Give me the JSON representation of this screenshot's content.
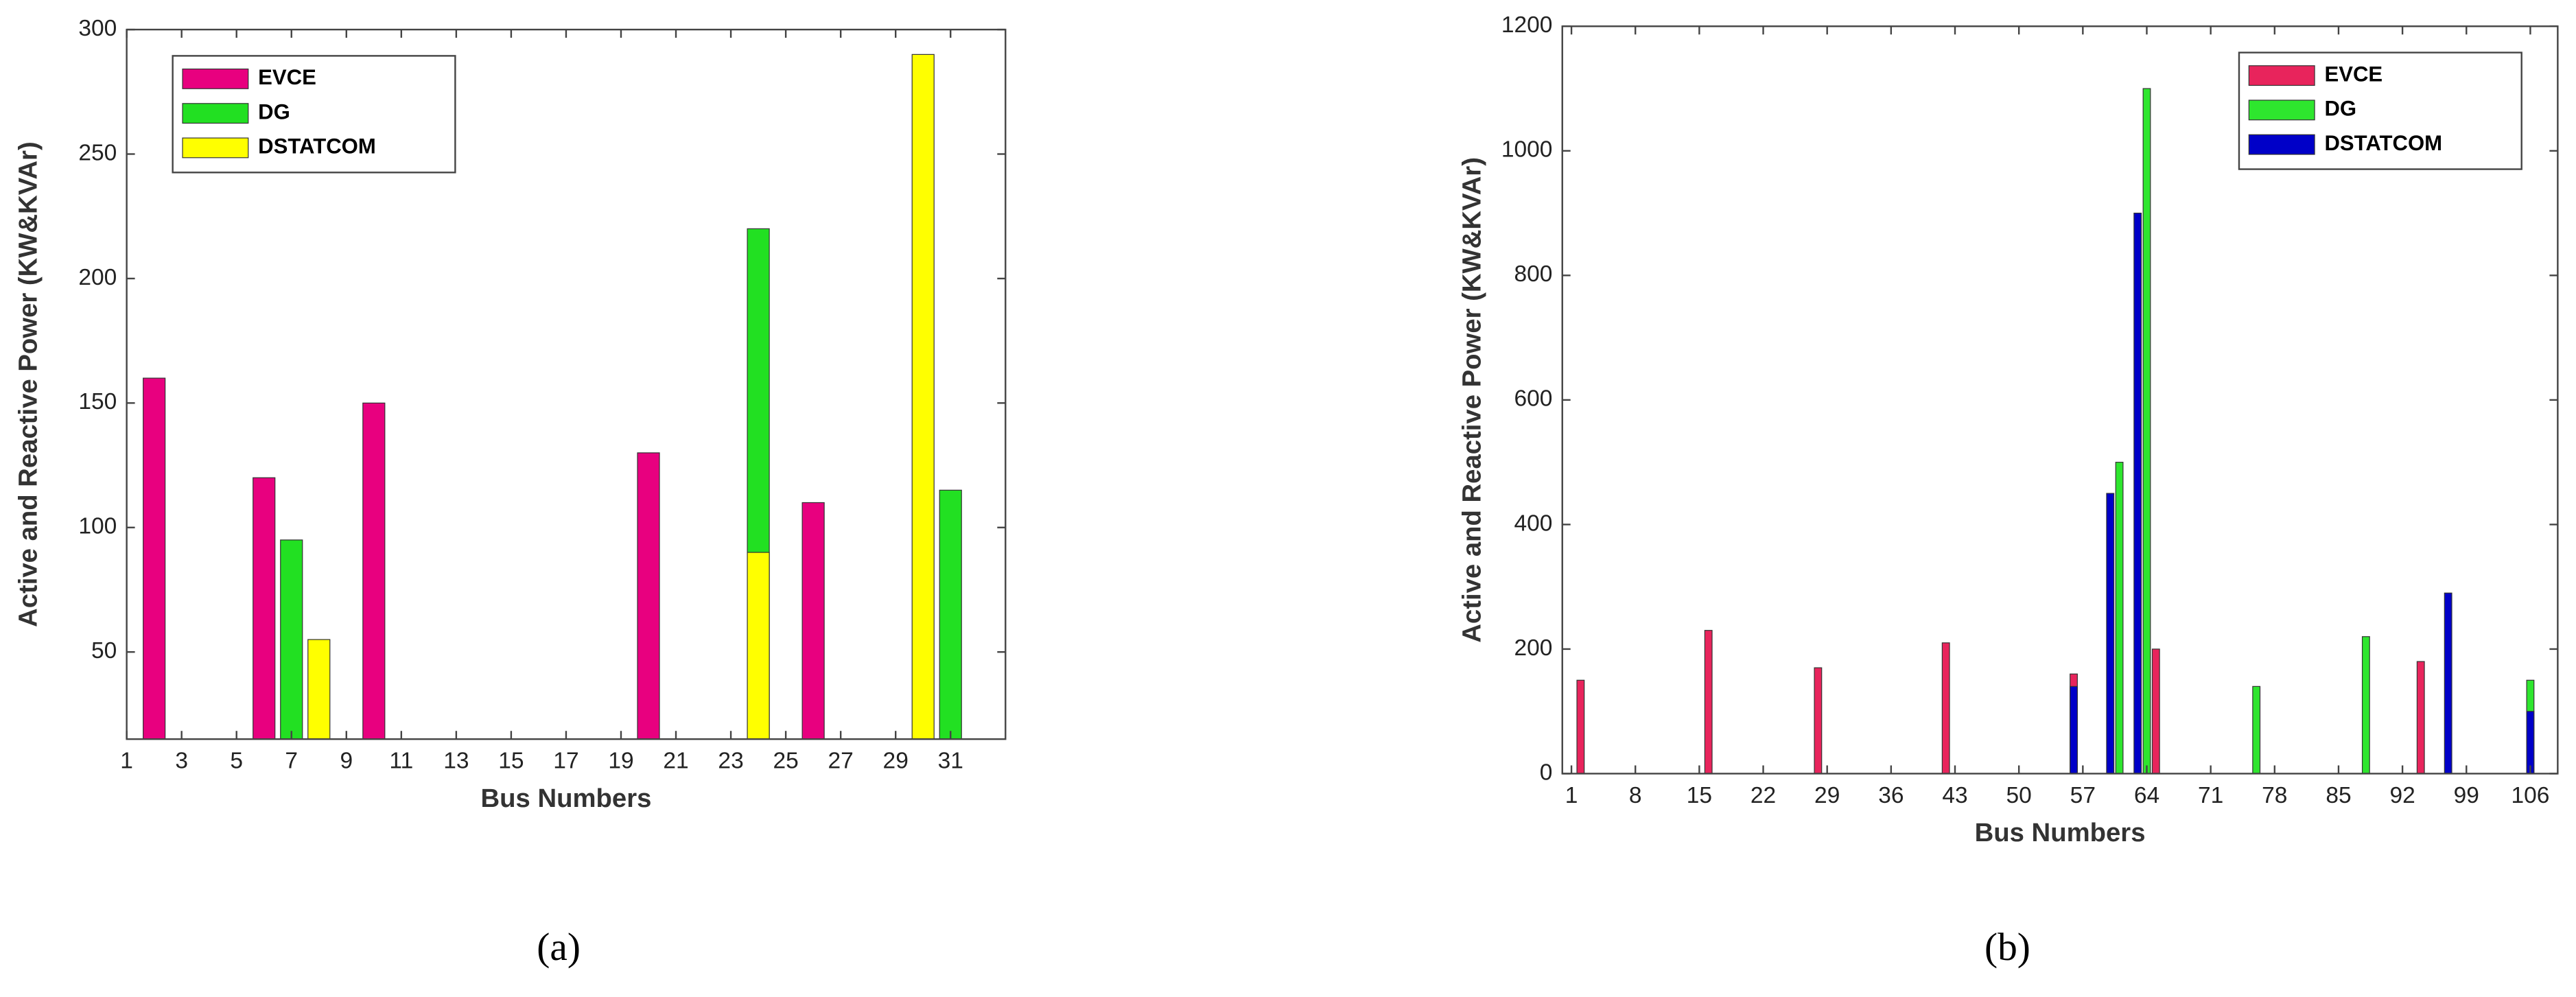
{
  "chart_data": [
    {
      "type": "bar",
      "caption": "(a)",
      "xlabel": "Bus Numbers",
      "ylabel": "Active and Reactive Power (KW&KVAr)",
      "xlim": [
        1,
        33
      ],
      "xticks": [
        1,
        3,
        5,
        7,
        9,
        11,
        13,
        15,
        17,
        19,
        21,
        23,
        25,
        27,
        29,
        31
      ],
      "ylim": [
        15,
        300
      ],
      "yticks": [
        50,
        100,
        150,
        200,
        250,
        300
      ],
      "grid": false,
      "legend": "upper left",
      "series": [
        {
          "name": "EVCE",
          "color": "#e8007f",
          "x": [
            2,
            6,
            10,
            20,
            26
          ],
          "values": [
            160,
            120,
            150,
            130,
            110
          ]
        },
        {
          "name": "DG",
          "color": "#22e022",
          "x": [
            7,
            24,
            31
          ],
          "values": [
            95,
            220,
            115
          ]
        },
        {
          "name": "DSTATCOM",
          "color": "#ffff00",
          "x": [
            8,
            24,
            30
          ],
          "values": [
            55,
            90,
            290
          ]
        }
      ]
    },
    {
      "type": "bar",
      "caption": "(b)",
      "xlabel": "Bus Numbers",
      "ylabel": "Active and Reactive Power (KW&KVAr)",
      "xlim": [
        0,
        109
      ],
      "xticks": [
        1,
        8,
        15,
        22,
        29,
        36,
        43,
        50,
        57,
        64,
        71,
        78,
        85,
        92,
        99,
        106
      ],
      "ylim": [
        0,
        1200
      ],
      "yticks": [
        0,
        200,
        400,
        600,
        800,
        1000,
        1200
      ],
      "grid": false,
      "legend": "upper right",
      "series": [
        {
          "name": "EVCE",
          "color": "#e8245c",
          "x": [
            2,
            16,
            28,
            42,
            56,
            65,
            94
          ],
          "values": [
            150,
            230,
            170,
            210,
            160,
            200,
            180
          ]
        },
        {
          "name": "DG",
          "color": "#2ee62e",
          "x": [
            61,
            64,
            76,
            88,
            106
          ],
          "values": [
            500,
            1100,
            140,
            220,
            150
          ]
        },
        {
          "name": "DSTATCOM",
          "color": "#0000c8",
          "x": [
            56,
            60,
            63,
            97,
            106
          ],
          "values": [
            140,
            450,
            900,
            290,
            100
          ]
        }
      ]
    }
  ]
}
